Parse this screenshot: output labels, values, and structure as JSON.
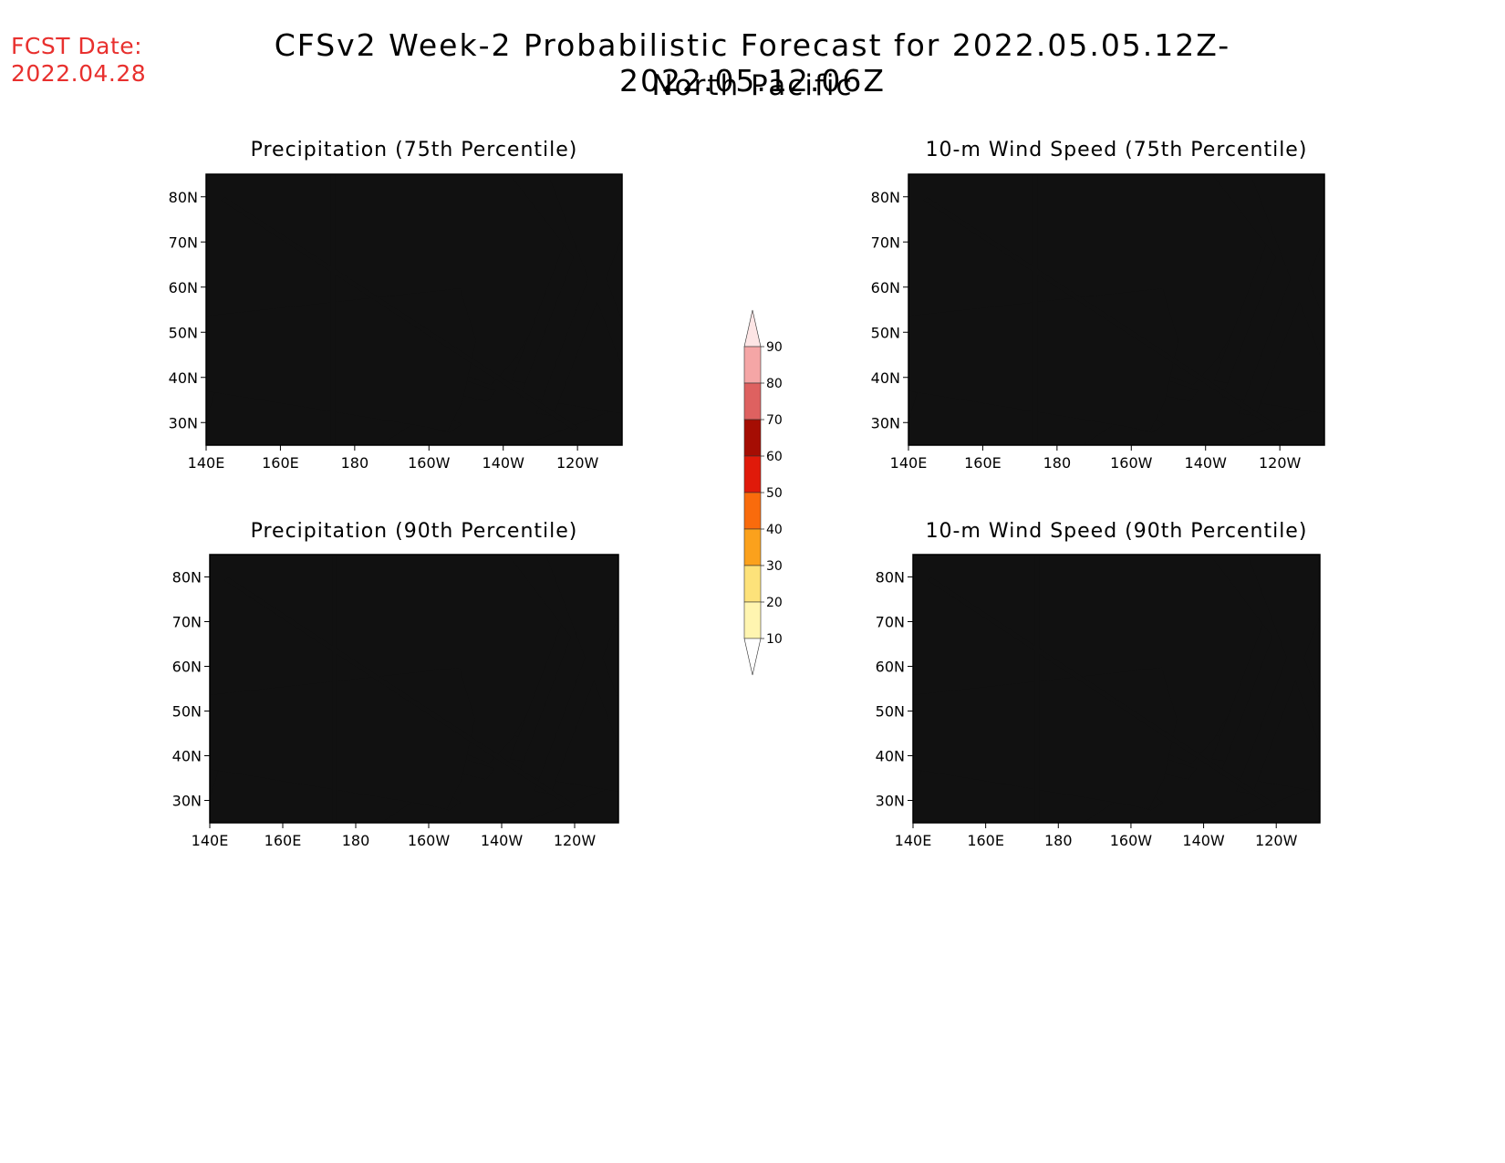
{
  "header": {
    "fcst_date_label": "FCST Date:",
    "fcst_date_value": "2022.04.28",
    "title": "CFSv2 Week-2 Probabilistic Forecast for 2022.05.05.12Z-2022.05.12.06Z",
    "subtitle": "North Pacific"
  },
  "colors": {
    "fcst_date": "#e8302e",
    "bin_10_20": "#fff5b0",
    "bin_20_30": "#fde27a",
    "bin_30_40": "#fba11c",
    "bin_40_50": "#f96b0c",
    "bin_50_60": "#e01a0a",
    "bin_60_70": "#a50d03",
    "bin_70_80": "#de6160",
    "bin_80_90": "#f5a6a6",
    "bin_90_plus": "#fde5e5"
  },
  "colorbar": {
    "levels": [
      "10",
      "20",
      "30",
      "40",
      "50",
      "60",
      "70",
      "80",
      "90"
    ]
  },
  "axes": {
    "lon_ticks": [
      "140E",
      "160E",
      "180",
      "160W",
      "140W",
      "120W"
    ],
    "lat_ticks": [
      "80N",
      "70N",
      "60N",
      "50N",
      "40N",
      "30N"
    ]
  },
  "panels": [
    {
      "id": "precip75",
      "title": "Precipitation (75th Percentile)",
      "variable": "precipitation",
      "percentile": 75
    },
    {
      "id": "wind75",
      "title": "10-m Wind Speed (75th Percentile)",
      "variable": "10-m wind speed",
      "percentile": 75
    },
    {
      "id": "precip90",
      "title": "Precipitation (90th Percentile)",
      "variable": "precipitation",
      "percentile": 90
    },
    {
      "id": "wind90",
      "title": "10-m Wind Speed (90th Percentile)",
      "variable": "10-m wind speed",
      "percentile": 90
    }
  ]
}
